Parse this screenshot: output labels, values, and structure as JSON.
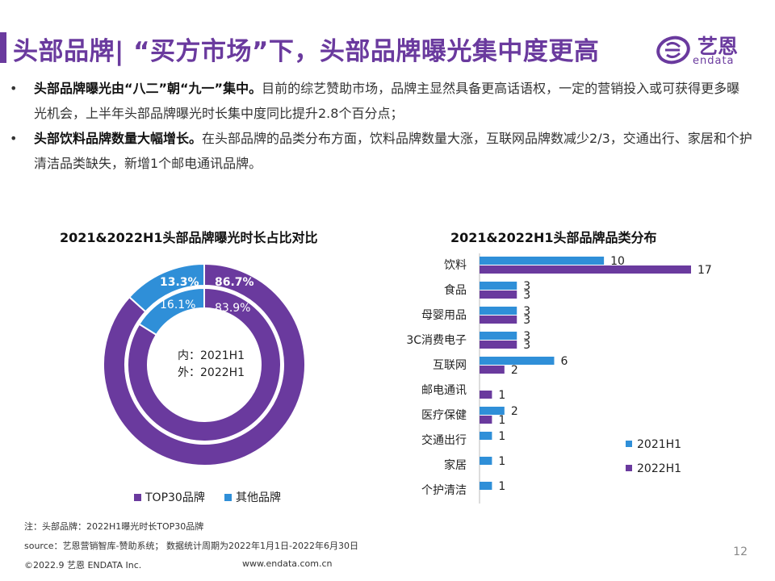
{
  "header": {
    "title": "头部品牌| “买方市场”下，头部品牌曝光集中度更高",
    "logo_text": "艺恩",
    "logo_sub": "endata"
  },
  "bullets": [
    {
      "bold": "头部品牌曝光由“八二”朝“九一”集中。",
      "text": "目前的综艺赞助市场，品牌主显然具备更高话语权，一定的营销投入或可获得更多曝光机会，上半年头部品牌曝光时长集中度同比提升2.8个百分点；"
    },
    {
      "bold": "头部饮料品牌数量大幅增长。",
      "text": "在头部品牌的品类分布方面，饮料品牌数量大涨，互联网品牌数减少2/3，交通出行、家居和个护清洁品类缺失，新增1个邮电通讯品牌。"
    }
  ],
  "chart_data": [
    {
      "type": "pie",
      "variant": "nested-donut",
      "title": "2021&2022H1头部品牌曝光时长占比对比",
      "center_label_inner": "内：2021H1",
      "center_label_outer": "外：2022H1",
      "categories": [
        "TOP30品牌",
        "其他品牌"
      ],
      "colors": [
        "#6a3a9e",
        "#2f8fd8"
      ],
      "rings": [
        {
          "name": "2021H1",
          "position": "inner",
          "values": [
            83.9,
            16.1
          ],
          "labels": [
            "83.9%",
            "16.1%"
          ]
        },
        {
          "name": "2022H1",
          "position": "outer",
          "values": [
            86.7,
            13.3
          ],
          "labels": [
            "86.7%",
            "13.3%"
          ]
        }
      ],
      "legend": [
        "TOP30品牌",
        "其他品牌"
      ],
      "legend_placement": "bottom"
    },
    {
      "type": "bar",
      "orientation": "horizontal",
      "title": "2021&2022H1头部品牌品类分布",
      "categories": [
        "饮料",
        "食品",
        "母婴用品",
        "3C消费电子",
        "互联网",
        "邮电通讯",
        "医疗保健",
        "交通出行",
        "家居",
        "个护清洁"
      ],
      "series": [
        {
          "name": "2021H1",
          "color": "#2f8fd8",
          "values": [
            10,
            3,
            3,
            3,
            6,
            null,
            2,
            1,
            1,
            1
          ]
        },
        {
          "name": "2022H1",
          "color": "#6a3a9e",
          "values": [
            17,
            3,
            3,
            3,
            2,
            1,
            1,
            null,
            null,
            null
          ]
        }
      ],
      "xlim": [
        0,
        17
      ],
      "legend_placement": "bottom-right",
      "grid": false
    }
  ],
  "footer": {
    "note": "注：头部品牌：2022H1曝光时长TOP30品牌",
    "source": "source：艺恩营销智库-赞助系统； 数据统计周期为2022年1月1日-2022年6月30日",
    "copyright": "©2022.9 艺恩 ENDATA Inc.",
    "website": "www.endata.com.cn",
    "page_number": "12"
  }
}
